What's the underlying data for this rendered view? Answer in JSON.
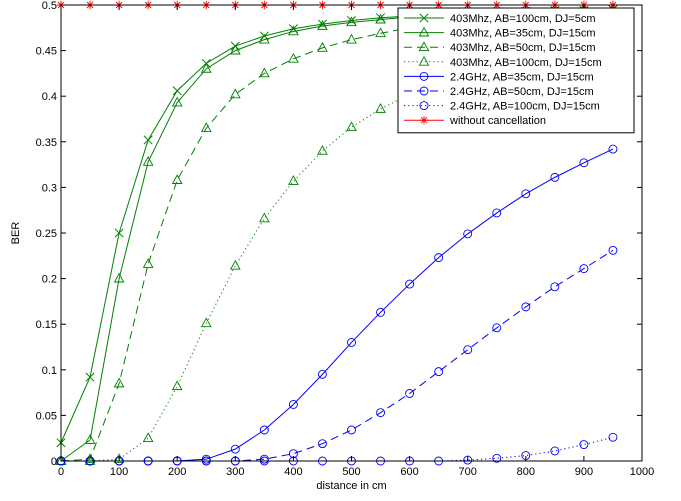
{
  "chart_data": {
    "type": "line",
    "title": "",
    "xlabel": "distance in cm",
    "ylabel": "BER",
    "xlim": [
      0,
      1000
    ],
    "ylim": [
      0,
      0.5
    ],
    "x_ticks": [
      0,
      100,
      200,
      300,
      400,
      500,
      600,
      700,
      800,
      900,
      1000
    ],
    "y_ticks": [
      0,
      0.05,
      0.1,
      0.15,
      0.2,
      0.25,
      0.3,
      0.35,
      0.4,
      0.45,
      0.5
    ],
    "grid": false,
    "legend_position": "top-right",
    "x": [
      0,
      50,
      100,
      150,
      200,
      250,
      300,
      350,
      400,
      450,
      500,
      550,
      600,
      650,
      700,
      750,
      800,
      850,
      900,
      950
    ],
    "series": [
      {
        "name": "403Mhz, AB=100cm, DJ=5cm",
        "color": "#008000",
        "linestyle": "solid",
        "marker": "x",
        "values": [
          0.02,
          0.092,
          0.25,
          0.352,
          0.406,
          0.436,
          0.455,
          0.466,
          0.474,
          0.479,
          0.483,
          0.486,
          0.488,
          0.49,
          0.491,
          0.492,
          0.493,
          0.494,
          0.494,
          0.495
        ]
      },
      {
        "name": "403Mhz, AB=35cm, DJ=15cm",
        "color": "#008000",
        "linestyle": "solid",
        "marker": "triangle",
        "values": [
          0.0,
          0.023,
          0.2,
          0.328,
          0.393,
          0.43,
          0.45,
          0.462,
          0.471,
          0.477,
          0.481,
          0.484,
          0.487,
          0.489,
          0.49,
          0.491,
          0.492,
          0.493,
          0.494,
          0.494
        ]
      },
      {
        "name": "403Mhz, AB=50cm, DJ=15cm",
        "color": "#008000",
        "linestyle": "dashed",
        "marker": "triangle",
        "values": [
          0.0,
          0.002,
          0.085,
          0.216,
          0.308,
          0.365,
          0.402,
          0.425,
          0.441,
          0.453,
          0.462,
          0.469,
          0.475,
          0.479,
          0.482,
          0.485,
          0.487,
          0.489,
          0.49,
          0.491
        ]
      },
      {
        "name": "403Mhz, AB=100cm, DJ=15cm",
        "color": "#008000",
        "linestyle": "dotted",
        "marker": "triangle",
        "values": [
          0.0,
          0.0,
          0.002,
          0.025,
          0.082,
          0.151,
          0.214,
          0.266,
          0.307,
          0.34,
          0.366,
          0.386,
          0.402,
          0.415,
          0.426,
          0.435,
          0.443,
          0.45,
          0.456,
          0.461
        ]
      },
      {
        "name": "2.4GHz, AB=35cm, DJ=15cm",
        "color": "#0000ff",
        "linestyle": "solid",
        "marker": "circle",
        "values": [
          0.0,
          0.0,
          0.0,
          0.0,
          0.0,
          0.002,
          0.013,
          0.034,
          0.062,
          0.095,
          0.13,
          0.163,
          0.194,
          0.223,
          0.249,
          0.272,
          0.293,
          0.311,
          0.327,
          0.342
        ]
      },
      {
        "name": "2.4GHz, AB=50cm, DJ=15cm",
        "color": "#0000ff",
        "linestyle": "dashed",
        "marker": "circle",
        "values": [
          0.0,
          0.0,
          0.0,
          0.0,
          0.0,
          0.0,
          0.0,
          0.002,
          0.008,
          0.019,
          0.034,
          0.053,
          0.074,
          0.098,
          0.122,
          0.146,
          0.169,
          0.191,
          0.211,
          0.231
        ]
      },
      {
        "name": "2.4GHz, AB=100cm, DJ=15cm",
        "color": "#0000ff",
        "linestyle": "dotted",
        "marker": "circle",
        "values": [
          0.0,
          0.0,
          0.0,
          0.0,
          0.0,
          0.0,
          0.0,
          0.0,
          0.0,
          0.0,
          0.0,
          0.0,
          0.0,
          0.0,
          0.001,
          0.003,
          0.006,
          0.011,
          0.018,
          0.026
        ]
      },
      {
        "name": "without cancellation",
        "color": "#ff0000",
        "linestyle": "solid",
        "marker": "star",
        "values": [
          0.5,
          0.5,
          0.5,
          0.5,
          0.5,
          0.5,
          0.5,
          0.5,
          0.5,
          0.5,
          0.5,
          0.5,
          0.5,
          0.5,
          0.5,
          0.5,
          0.5,
          0.5,
          0.5,
          0.5
        ]
      }
    ]
  }
}
